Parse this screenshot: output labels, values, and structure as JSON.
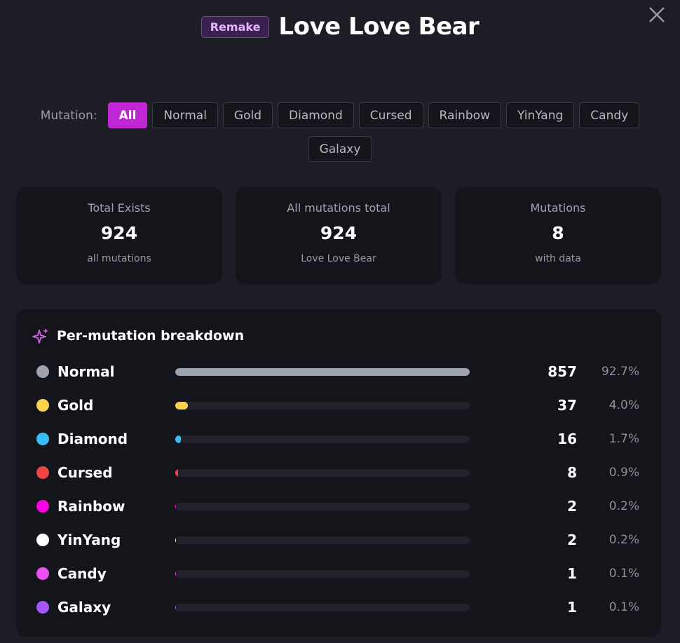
{
  "header": {
    "badge": "Remake",
    "title": "Love Love Bear"
  },
  "filter": {
    "label": "Mutation:",
    "options": [
      "All",
      "Normal",
      "Gold",
      "Diamond",
      "Cursed",
      "Rainbow",
      "YinYang",
      "Candy",
      "Galaxy"
    ]
  },
  "stats": [
    {
      "label": "Total Exists",
      "value": 924,
      "note": "all mutations"
    },
    {
      "label": "All mutations total",
      "value": 924,
      "note": "Love Love Bear"
    },
    {
      "label": "Mutations",
      "value": 8,
      "note": "with data"
    }
  ],
  "breakdown": {
    "title": "Per-mutation breakdown",
    "rows": [
      {
        "name": "Normal",
        "color": "#9ca3af",
        "count": 857,
        "percent": "92.7%"
      },
      {
        "name": "Gold",
        "color": "#fcd34d",
        "count": 37,
        "percent": "4.0%"
      },
      {
        "name": "Diamond",
        "color": "#38bdf8",
        "count": 16,
        "percent": "1.7%"
      },
      {
        "name": "Cursed",
        "color": "#ef4444",
        "count": 8,
        "percent": "0.9%"
      },
      {
        "name": "Rainbow",
        "color": "#ff00e6",
        "count": 2,
        "percent": "0.2%"
      },
      {
        "name": "YinYang",
        "color": "#ffffff",
        "count": 2,
        "percent": "0.2%"
      },
      {
        "name": "Candy",
        "color": "#f04ff0",
        "count": 1,
        "percent": "0.1%"
      },
      {
        "name": "Galaxy",
        "color": "#a855f7",
        "count": 1,
        "percent": "0.1%"
      }
    ]
  }
}
